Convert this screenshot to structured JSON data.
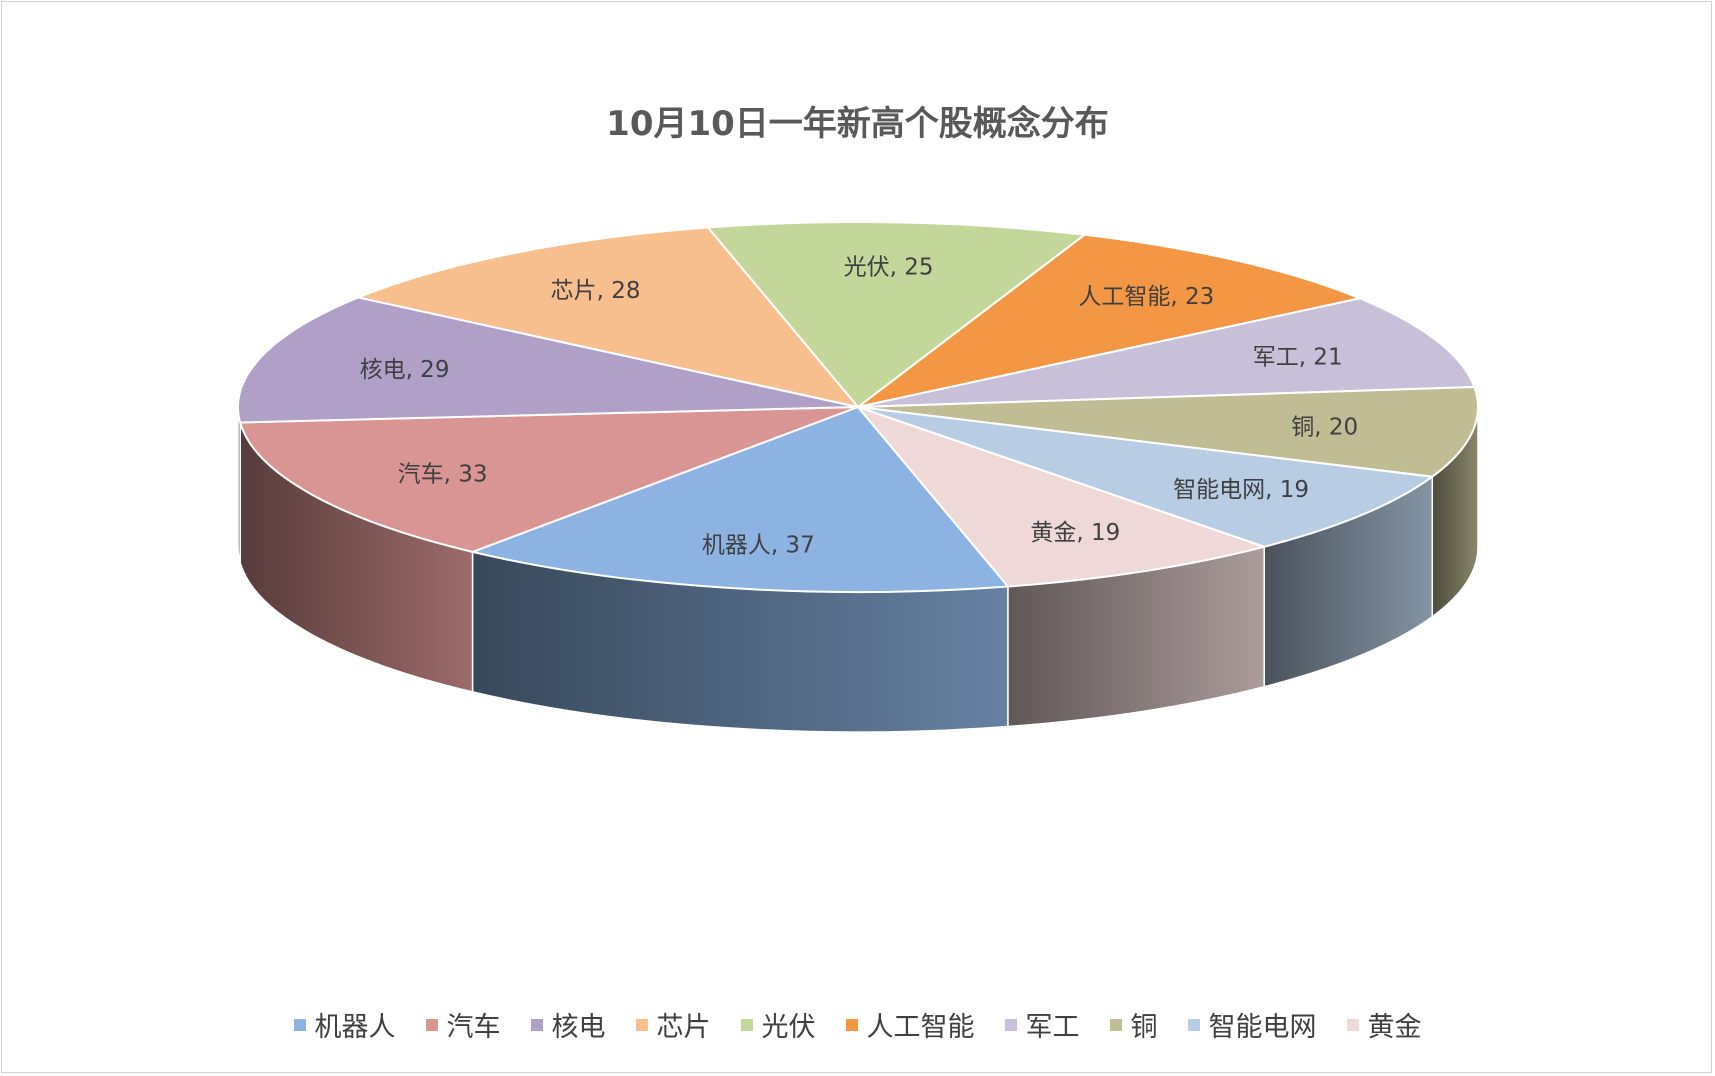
{
  "chart_data": {
    "type": "pie",
    "style": "3d",
    "title": "10月10日一年新高个股概念分布",
    "categories": [
      "机器人",
      "汽车",
      "核电",
      "芯片",
      "光伏",
      "人工智能",
      "军工",
      "铜",
      "智能电网",
      "黄金"
    ],
    "values": [
      37,
      33,
      29,
      28,
      25,
      23,
      21,
      20,
      19,
      19
    ],
    "colors": [
      "#8DB3E2",
      "#D99593",
      "#B09FC7",
      "#F7BE8E",
      "#C4D79B",
      "#F39745",
      "#C8BFD9",
      "#C0BC94",
      "#B8CDE4",
      "#EFD9D8"
    ],
    "data_labels": [
      "机器人, 37",
      "汽车, 33",
      "核电, 29",
      "芯片, 28",
      "光伏, 25",
      "人工智能, 23",
      "军工, 21",
      "铜, 20",
      "智能电网, 19",
      "黄金, 19"
    ],
    "legend": {
      "position": "bottom",
      "entries": [
        "机器人",
        "汽车",
        "核电",
        "芯片",
        "光伏",
        "人工智能",
        "军工",
        "铜",
        "智能电网",
        "黄金"
      ]
    }
  }
}
